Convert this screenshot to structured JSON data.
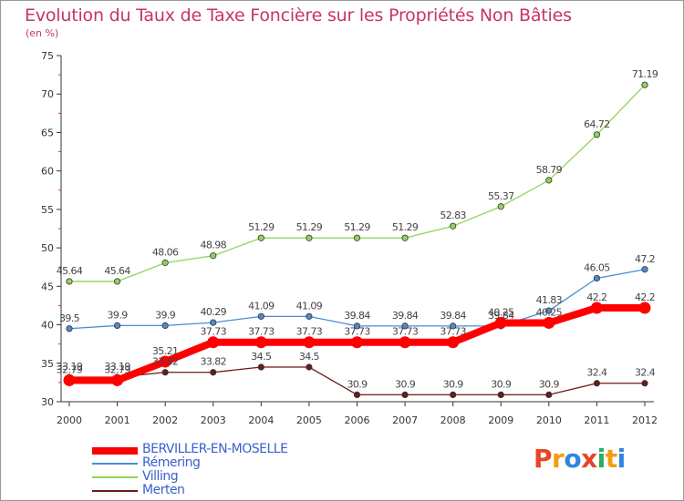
{
  "header": {
    "title": "Evolution du Taux de Taxe Foncière sur les Propriétés Non Bâties",
    "subtitle": "(en %)"
  },
  "logo": {
    "text": [
      "P",
      "r",
      "o",
      "x",
      "i",
      "t",
      "i"
    ],
    "colors": [
      "#e8442a",
      "#f39c12",
      "#2e86de",
      "#e8442a",
      "#27ae60",
      "#f39c12",
      "#2e86de"
    ]
  },
  "chart_data": {
    "type": "line",
    "title": "Evolution du Taux de Taxe Foncière sur les Propriétés Non Bâties",
    "ylabel": "(en %)",
    "x": [
      "2000",
      "2001",
      "2002",
      "2003",
      "2004",
      "2005",
      "2006",
      "2007",
      "2008",
      "2009",
      "2010",
      "2011",
      "2012"
    ],
    "ylim": [
      30,
      75
    ],
    "yticks": [
      "30",
      "35",
      "40",
      "45",
      "50",
      "55",
      "60",
      "65",
      "70",
      "75"
    ],
    "grid": false,
    "legend_position": "bottom-left",
    "series": [
      {
        "name": "BERVILLER-EN-MOSELLE",
        "color": "#ff0000",
        "values": [
          32.79,
          32.79,
          35.21,
          37.73,
          37.73,
          37.73,
          37.73,
          37.73,
          37.73,
          40.25,
          40.25,
          42.2,
          42.2
        ],
        "labels": [
          "32.79",
          "32.79",
          "35.21",
          "37.73",
          "37.73",
          "37.73",
          "37.73",
          "37.73",
          "37.73",
          "40.25",
          "40.25",
          "42.2",
          "42.2"
        ]
      },
      {
        "name": "Rémering",
        "color": "#4a8ccf",
        "values": [
          39.5,
          39.9,
          39.9,
          40.29,
          41.09,
          41.09,
          39.84,
          39.84,
          39.84,
          39.84,
          41.83,
          46.05,
          47.2
        ],
        "labels": [
          "39.5",
          "39.9",
          "39.9",
          "40.29",
          "41.09",
          "41.09",
          "39.84",
          "39.84",
          "39.84",
          "39.84",
          "41.83",
          "46.05",
          "47.2"
        ]
      },
      {
        "name": "Villing",
        "color": "#8fd45a",
        "values": [
          45.64,
          45.64,
          48.06,
          48.98,
          51.29,
          51.29,
          51.29,
          51.29,
          52.83,
          55.37,
          58.79,
          64.72,
          71.19
        ],
        "labels": [
          "45.64",
          "45.64",
          "48.06",
          "48.98",
          "51.29",
          "51.29",
          "51.29",
          "51.29",
          "52.83",
          "55.37",
          "58.79",
          "64.72",
          "71.19"
        ]
      },
      {
        "name": "Merten",
        "color": "#6b1a1a",
        "values": [
          33.19,
          33.19,
          33.82,
          33.82,
          34.5,
          34.5,
          30.9,
          30.9,
          30.9,
          30.9,
          30.9,
          32.4,
          32.4
        ],
        "labels": [
          "33.19",
          "33.19",
          "33.82",
          "33.82",
          "34.5",
          "34.5",
          "30.9",
          "30.9",
          "30.9",
          "30.9",
          "30.9",
          "32.4",
          "32.4"
        ]
      }
    ]
  }
}
